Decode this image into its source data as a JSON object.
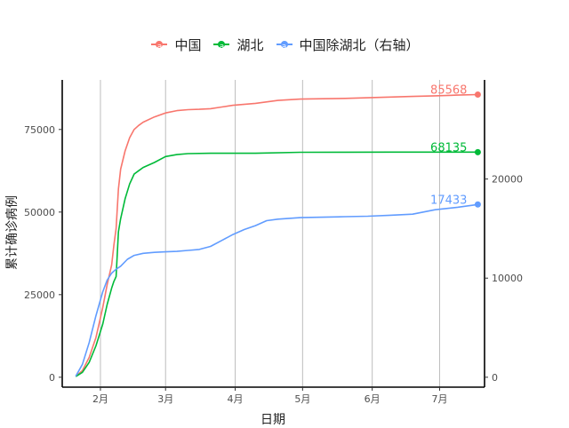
{
  "legend": {
    "items": [
      {
        "label": "中国",
        "color": "#F8766D",
        "key_letter": "a"
      },
      {
        "label": "湖北",
        "color": "#00BA38",
        "key_letter": "a"
      },
      {
        "label": "中国除湖北（右轴）",
        "color": "#619CFF",
        "key_letter": "a"
      }
    ]
  },
  "chart_data": {
    "type": "line",
    "title": "",
    "xlabel": "日期",
    "ylabel": "累计确诊病例",
    "x_ticks": [
      "2月",
      "3月",
      "4月",
      "5月",
      "6月",
      "7月"
    ],
    "x_tick_days": [
      31,
      60,
      91,
      121,
      152,
      182
    ],
    "x_unit": "day of year 2020",
    "xlim": [
      14,
      202
    ],
    "y_left_ticks": [
      0,
      25000,
      50000,
      75000
    ],
    "y_left_lim": [
      -3000,
      90000
    ],
    "y_right_ticks": [
      0,
      10000,
      20000
    ],
    "y_right_lim": [
      -1000,
      30000
    ],
    "grid": "vertical major lines at month ticks",
    "series": [
      {
        "name": "中国",
        "color": "#F8766D",
        "axis": "left",
        "end_label": "85568",
        "x": [
          20,
          23,
          26,
          29,
          32,
          34,
          36,
          37,
          38,
          39,
          40,
          42,
          44,
          46,
          48,
          50,
          55,
          60,
          65,
          70,
          75,
          80,
          85,
          90,
          100,
          110,
          120,
          130,
          140,
          150,
          160,
          170,
          180,
          190,
          199
        ],
        "y": [
          300,
          2000,
          6000,
          12000,
          21000,
          28000,
          34000,
          40000,
          45000,
          57000,
          63000,
          68500,
          72500,
          75000,
          76200,
          77200,
          78800,
          80000,
          80700,
          81000,
          81100,
          81300,
          81800,
          82300,
          82900,
          83800,
          84200,
          84300,
          84400,
          84600,
          84800,
          85000,
          85200,
          85400,
          85568
        ]
      },
      {
        "name": "湖北",
        "color": "#00BA38",
        "axis": "left",
        "end_label": "68135",
        "x": [
          20,
          23,
          26,
          29,
          32,
          34,
          36,
          37,
          38,
          39,
          40,
          42,
          44,
          46,
          48,
          50,
          55,
          60,
          65,
          70,
          80,
          90,
          100,
          120,
          140,
          160,
          180,
          199
        ],
        "y": [
          200,
          1500,
          4500,
          9500,
          16000,
          22000,
          27000,
          29000,
          30500,
          44000,
          48000,
          54000,
          58500,
          61500,
          62500,
          63500,
          65000,
          66800,
          67400,
          67700,
          67800,
          67800,
          67800,
          68100,
          68130,
          68135,
          68135,
          68135
        ]
      },
      {
        "name": "中国除湖北（右轴）",
        "color": "#619CFF",
        "axis": "right",
        "end_label": "17433",
        "x": [
          20,
          23,
          26,
          29,
          32,
          34,
          36,
          38,
          40,
          43,
          46,
          50,
          55,
          60,
          65,
          70,
          75,
          80,
          85,
          90,
          95,
          100,
          105,
          110,
          120,
          130,
          140,
          150,
          160,
          170,
          180,
          190,
          199
        ],
        "y": [
          100,
          1300,
          3500,
          6200,
          8600,
          9800,
          10500,
          10900,
          11200,
          11900,
          12300,
          12500,
          12600,
          12650,
          12700,
          12800,
          12900,
          13200,
          13800,
          14400,
          14900,
          15300,
          15800,
          15950,
          16100,
          16150,
          16200,
          16250,
          16350,
          16450,
          16900,
          17150,
          17433
        ]
      }
    ]
  }
}
